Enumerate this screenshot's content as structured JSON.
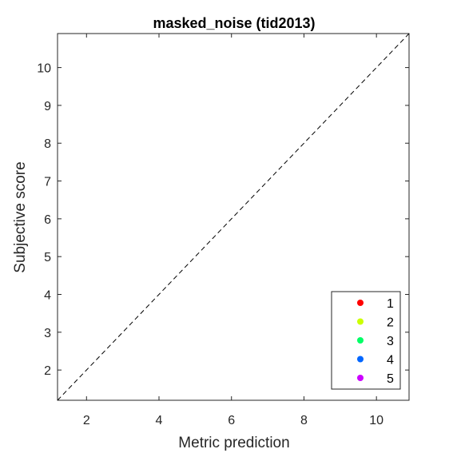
{
  "chart_data": {
    "type": "scatter",
    "title": "masked_noise (tid2013)",
    "xlabel": "Metric prediction",
    "ylabel": "Subjective score",
    "xlim": [
      1.2,
      10.9
    ],
    "ylim": [
      1.2,
      10.9
    ],
    "xticks": [
      2,
      4,
      6,
      8,
      10
    ],
    "yticks": [
      2,
      3,
      4,
      5,
      6,
      7,
      8,
      9,
      10
    ],
    "grid": false,
    "reference_line": {
      "style": "dashed",
      "color": "#000000",
      "from": [
        1.2,
        1.2
      ],
      "to": [
        10.9,
        10.9
      ]
    },
    "legend_position": "bottom-right",
    "series": [
      {
        "name": "1",
        "color": "#ff0000",
        "x": [],
        "y": []
      },
      {
        "name": "2",
        "color": "#ccff00",
        "x": [],
        "y": []
      },
      {
        "name": "3",
        "color": "#00ff66",
        "x": [],
        "y": []
      },
      {
        "name": "4",
        "color": "#0066ff",
        "x": [],
        "y": []
      },
      {
        "name": "5",
        "color": "#cc00ff",
        "x": [],
        "y": []
      }
    ]
  }
}
